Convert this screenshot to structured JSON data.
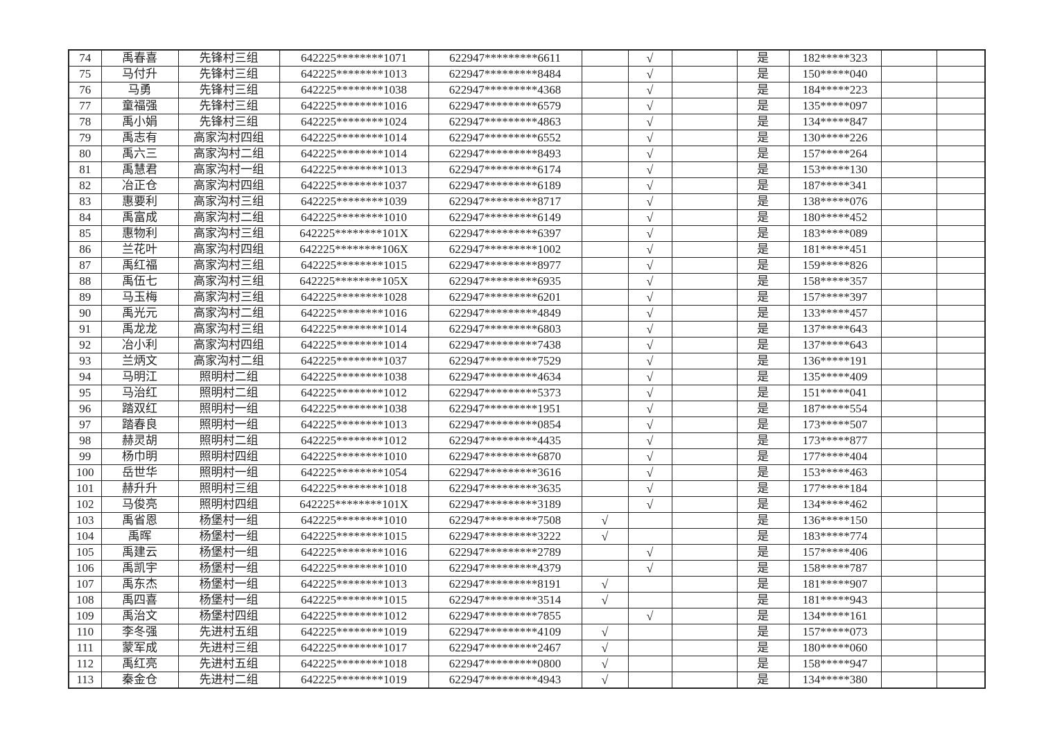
{
  "table": {
    "rows": [
      [
        "74",
        "禹春喜",
        "先锋村三组",
        "642225********1071",
        "622947*********6611",
        "",
        "√",
        "",
        "是",
        "182*****323",
        "",
        ""
      ],
      [
        "75",
        "马付升",
        "先锋村三组",
        "642225********1013",
        "622947*********8484",
        "",
        "√",
        "",
        "是",
        "150*****040",
        "",
        ""
      ],
      [
        "76",
        "马勇",
        "先锋村三组",
        "642225********1038",
        "622947*********4368",
        "",
        "√",
        "",
        "是",
        "184*****223",
        "",
        ""
      ],
      [
        "77",
        "童福强",
        "先锋村三组",
        "642225********1016",
        "622947*********6579",
        "",
        "√",
        "",
        "是",
        "135*****097",
        "",
        ""
      ],
      [
        "78",
        "禹小娟",
        "先锋村三组",
        "642225********1024",
        "622947*********4863",
        "",
        "√",
        "",
        "是",
        "134*****847",
        "",
        ""
      ],
      [
        "79",
        "禹志有",
        "高家沟村四组",
        "642225********1014",
        "622947*********6552",
        "",
        "√",
        "",
        "是",
        "130*****226",
        "",
        ""
      ],
      [
        "80",
        "禹六三",
        "高家沟村二组",
        "642225********1014",
        "622947*********8493",
        "",
        "√",
        "",
        "是",
        "157*****264",
        "",
        ""
      ],
      [
        "81",
        "禹慧君",
        "高家沟村一组",
        "642225********1013",
        "622947*********6174",
        "",
        "√",
        "",
        "是",
        "153*****130",
        "",
        ""
      ],
      [
        "82",
        "冶正仓",
        "高家沟村四组",
        "642225********1037",
        "622947*********6189",
        "",
        "√",
        "",
        "是",
        "187*****341",
        "",
        ""
      ],
      [
        "83",
        "惠要利",
        "高家沟村三组",
        "642225********1039",
        "622947*********8717",
        "",
        "√",
        "",
        "是",
        "138*****076",
        "",
        ""
      ],
      [
        "84",
        "禹富成",
        "高家沟村二组",
        "642225********1010",
        "622947*********6149",
        "",
        "√",
        "",
        "是",
        "180*****452",
        "",
        ""
      ],
      [
        "85",
        "惠物利",
        "高家沟村三组",
        "642225********101X",
        "622947*********6397",
        "",
        "√",
        "",
        "是",
        "183*****089",
        "",
        ""
      ],
      [
        "86",
        "兰花叶",
        "高家沟村四组",
        "642225********106X",
        "622947*********1002",
        "",
        "√",
        "",
        "是",
        "181*****451",
        "",
        ""
      ],
      [
        "87",
        "禹红福",
        "高家沟村三组",
        "642225********1015",
        "622947*********8977",
        "",
        "√",
        "",
        "是",
        "159*****826",
        "",
        ""
      ],
      [
        "88",
        "禹伍七",
        "高家沟村三组",
        "642225********105X",
        "622947*********6935",
        "",
        "√",
        "",
        "是",
        "158*****357",
        "",
        ""
      ],
      [
        "89",
        "马玉梅",
        "高家沟村三组",
        "642225********1028",
        "622947*********6201",
        "",
        "√",
        "",
        "是",
        "157*****397",
        "",
        ""
      ],
      [
        "90",
        "禹光元",
        "高家沟村二组",
        "642225********1016",
        "622947*********4849",
        "",
        "√",
        "",
        "是",
        "133*****457",
        "",
        ""
      ],
      [
        "91",
        "禹龙龙",
        "高家沟村三组",
        "642225********1014",
        "622947*********6803",
        "",
        "√",
        "",
        "是",
        "137*****643",
        "",
        ""
      ],
      [
        "92",
        "冶小利",
        "高家沟村四组",
        "642225********1014",
        "622947*********7438",
        "",
        "√",
        "",
        "是",
        "137*****643",
        "",
        ""
      ],
      [
        "93",
        "兰炳文",
        "高家沟村二组",
        "642225********1037",
        "622947*********7529",
        "",
        "√",
        "",
        "是",
        "136*****191",
        "",
        ""
      ],
      [
        "94",
        "马明江",
        "照明村二组",
        "642225********1038",
        "622947*********4634",
        "",
        "√",
        "",
        "是",
        "135*****409",
        "",
        ""
      ],
      [
        "95",
        "马治红",
        "照明村二组",
        "642225********1012",
        "622947*********5373",
        "",
        "√",
        "",
        "是",
        "151*****041",
        "",
        ""
      ],
      [
        "96",
        "踏双红",
        "照明村一组",
        "642225********1038",
        "622947*********1951",
        "",
        "√",
        "",
        "是",
        "187*****554",
        "",
        ""
      ],
      [
        "97",
        "踏春良",
        "照明村一组",
        "642225********1013",
        "622947*********0854",
        "",
        "√",
        "",
        "是",
        "173*****507",
        "",
        ""
      ],
      [
        "98",
        "赫灵胡",
        "照明村二组",
        "642225********1012",
        "622947*********4435",
        "",
        "√",
        "",
        "是",
        "173*****877",
        "",
        ""
      ],
      [
        "99",
        "杨巾明",
        "照明村四组",
        "642225********1010",
        "622947*********6870",
        "",
        "√",
        "",
        "是",
        "177*****404",
        "",
        ""
      ],
      [
        "100",
        "岳世华",
        "照明村一组",
        "642225********1054",
        "622947*********3616",
        "",
        "√",
        "",
        "是",
        "153*****463",
        "",
        ""
      ],
      [
        "101",
        "赫升升",
        "照明村三组",
        "642225********1018",
        "622947*********3635",
        "",
        "√",
        "",
        "是",
        "177*****184",
        "",
        ""
      ],
      [
        "102",
        "马俊亮",
        "照明村四组",
        "642225********101X",
        "622947*********3189",
        "",
        "√",
        "",
        "是",
        "134*****462",
        "",
        ""
      ],
      [
        "103",
        "禹省恩",
        "杨堡村一组",
        "642225********1010",
        "622947*********7508",
        "√",
        "",
        "",
        "是",
        "136*****150",
        "",
        ""
      ],
      [
        "104",
        "禹晖",
        "杨堡村一组",
        "642225********1015",
        "622947*********3222",
        "√",
        "",
        "",
        "是",
        "183*****774",
        "",
        ""
      ],
      [
        "105",
        "禹建云",
        "杨堡村一组",
        "642225********1016",
        "622947*********2789",
        "",
        "√",
        "",
        "是",
        "157*****406",
        "",
        ""
      ],
      [
        "106",
        "禹凯宇",
        "杨堡村一组",
        "642225********1010",
        "622947*********4379",
        "",
        "√",
        "",
        "是",
        "158*****787",
        "",
        ""
      ],
      [
        "107",
        "禹东杰",
        "杨堡村一组",
        "642225********1013",
        "622947*********8191",
        "√",
        "",
        "",
        "是",
        "181*****907",
        "",
        ""
      ],
      [
        "108",
        "禹四喜",
        "杨堡村一组",
        "642225********1015",
        "622947*********3514",
        "√",
        "",
        "",
        "是",
        "181*****943",
        "",
        ""
      ],
      [
        "109",
        "禹治文",
        "杨堡村四组",
        "642225********1012",
        "622947*********7855",
        "",
        "√",
        "",
        "是",
        "134*****161",
        "",
        ""
      ],
      [
        "110",
        "李冬强",
        "先进村五组",
        "642225********1019",
        "622947*********4109",
        "√",
        "",
        "",
        "是",
        "157*****073",
        "",
        ""
      ],
      [
        "111",
        "蒙军成",
        "先进村三组",
        "642225********1017",
        "622947*********2467",
        "√",
        "",
        "",
        "是",
        "180*****060",
        "",
        ""
      ],
      [
        "112",
        "禹红亮",
        "先进村五组",
        "642225********1018",
        "622947*********0800",
        "√",
        "",
        "",
        "是",
        "158*****947",
        "",
        ""
      ],
      [
        "113",
        "秦金仓",
        "先进村二组",
        "642225********1019",
        "622947*********4943",
        "√",
        "",
        "",
        "是",
        "134*****380",
        "",
        ""
      ]
    ]
  }
}
